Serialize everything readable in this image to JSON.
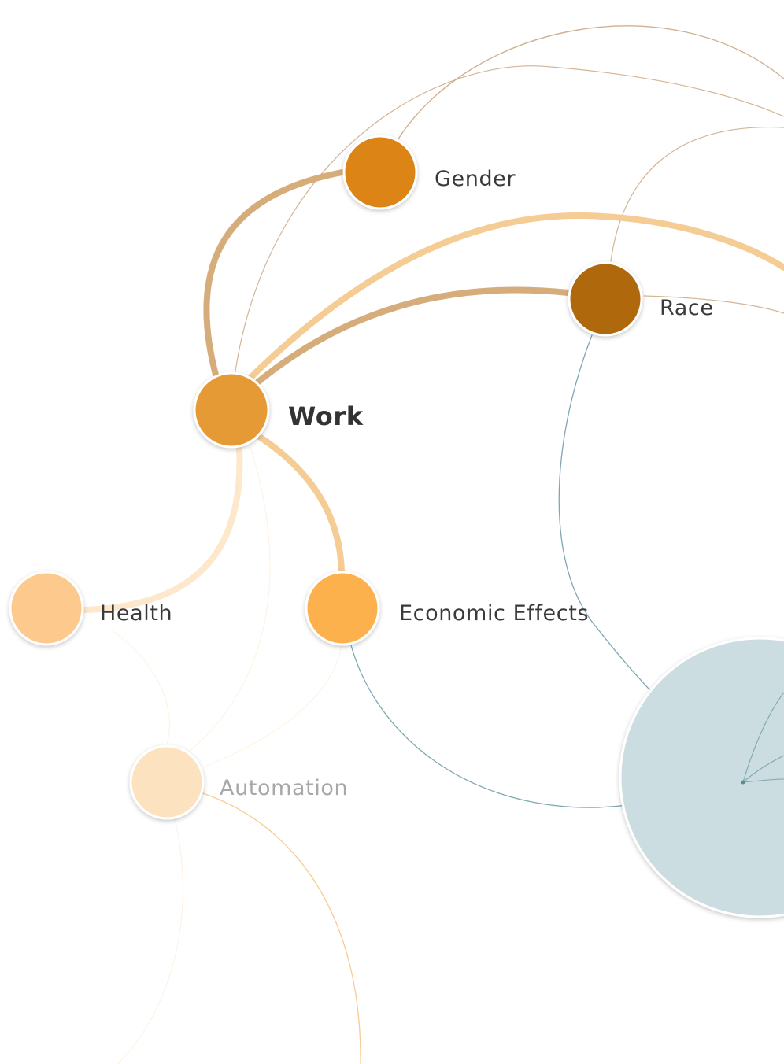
{
  "nodes": {
    "gender": {
      "label": "Gender",
      "color": "#dc8414"
    },
    "race": {
      "label": "Race",
      "color": "#b0670d"
    },
    "work": {
      "label": "Work",
      "color": "#e59a35"
    },
    "health": {
      "label": "Health",
      "color": "#fdc98c"
    },
    "economic_effects": {
      "label": "Economic Effects",
      "color": "#fdb14e"
    },
    "automation": {
      "label": "Automation",
      "color": "#fde2c0"
    },
    "cluster": {
      "label": "",
      "color": "#cbdde1"
    }
  },
  "colors": {
    "strong_link": "#d6ad7a",
    "light_link": "#f5cc94",
    "pale_link": "#fde8cc",
    "thin_link": "#c8a27c",
    "teal_link": "#7ea7b2"
  }
}
